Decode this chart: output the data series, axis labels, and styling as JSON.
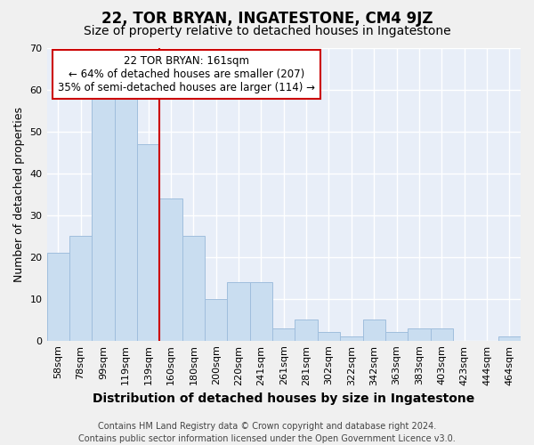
{
  "title": "22, TOR BRYAN, INGATESTONE, CM4 9JZ",
  "subtitle": "Size of property relative to detached houses in Ingatestone",
  "xlabel": "Distribution of detached houses by size in Ingatestone",
  "ylabel": "Number of detached properties",
  "categories": [
    "58sqm",
    "78sqm",
    "99sqm",
    "119sqm",
    "139sqm",
    "160sqm",
    "180sqm",
    "200sqm",
    "220sqm",
    "241sqm",
    "261sqm",
    "281sqm",
    "302sqm",
    "322sqm",
    "342sqm",
    "363sqm",
    "383sqm",
    "403sqm",
    "423sqm",
    "444sqm",
    "464sqm"
  ],
  "values": [
    21,
    25,
    58,
    58,
    47,
    34,
    25,
    10,
    14,
    14,
    3,
    5,
    2,
    1,
    5,
    2,
    3,
    3,
    0,
    0,
    1
  ],
  "bar_color": "#c9ddf0",
  "bar_edgecolor": "#a0bedd",
  "vline_x_index": 5,
  "vline_color": "#cc0000",
  "annotation_line1": "22 TOR BRYAN: 161sqm",
  "annotation_line2": "← 64% of detached houses are smaller (207)",
  "annotation_line3": "35% of semi-detached houses are larger (114) →",
  "annotation_box_edgecolor": "#cc0000",
  "ylim": [
    0,
    70
  ],
  "yticks": [
    0,
    10,
    20,
    30,
    40,
    50,
    60,
    70
  ],
  "plot_background_color": "#e8eef8",
  "fig_background_color": "#f0f0f0",
  "grid_color": "#ffffff",
  "footer_line1": "Contains HM Land Registry data © Crown copyright and database right 2024.",
  "footer_line2": "Contains public sector information licensed under the Open Government Licence v3.0.",
  "title_fontsize": 12,
  "subtitle_fontsize": 10,
  "xlabel_fontsize": 10,
  "ylabel_fontsize": 9,
  "tick_fontsize": 8,
  "annotation_fontsize": 8.5,
  "footer_fontsize": 7
}
